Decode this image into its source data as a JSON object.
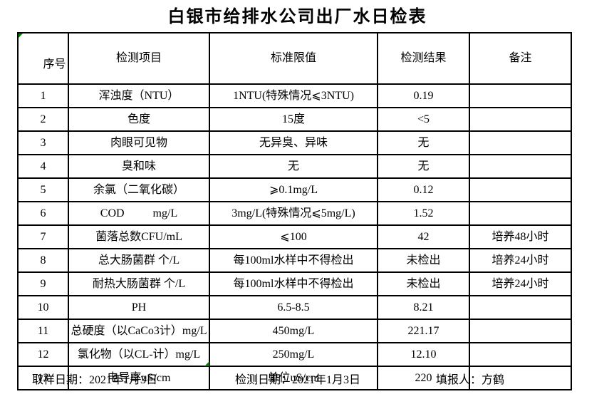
{
  "title": "白银市给排水公司出厂水日检表",
  "colors": {
    "background": "#ffffff",
    "text": "#000000",
    "border": "#000000",
    "flag_green": "#008000"
  },
  "markers": {
    "header_corner": "green-triangle",
    "bottom_edge": "green-triangle"
  },
  "table": {
    "headers": [
      "序号",
      "检测项目",
      "标准限值",
      "检测结果",
      "备注"
    ],
    "rows": [
      {
        "no": "1",
        "item": "浑浊度（NTU）",
        "limit": "1NTU(特殊情况⩽3NTU)",
        "result": "0.19",
        "note": ""
      },
      {
        "no": "2",
        "item": "色度",
        "limit": "15度",
        "result": "<5",
        "note": ""
      },
      {
        "no": "3",
        "item": "肉眼可见物",
        "limit": "无异臭、异味",
        "result": "无",
        "note": ""
      },
      {
        "no": "4",
        "item": "臭和味",
        "limit": "无",
        "result": "无",
        "note": ""
      },
      {
        "no": "5",
        "item": "余氯（二氧化碳）",
        "limit": "⩾0.1mg/L",
        "result": "0.12",
        "note": ""
      },
      {
        "no": "6",
        "item": "COD          mg/L",
        "limit": "3mg/L(特殊情况⩽5mg/L)",
        "result": "1.52",
        "note": ""
      },
      {
        "no": "7",
        "item": "菌落总数CFU/mL",
        "limit": "⩽100",
        "result": "42",
        "note": "培养48小时"
      },
      {
        "no": "8",
        "item": "总大肠菌群 个/L",
        "limit": "每100ml水样中不得检出",
        "result": "未检出",
        "note": "培养24小时"
      },
      {
        "no": "9",
        "item": "耐热大肠菌群 个/L",
        "limit": "每100ml水样中不得检出",
        "result": "未检出",
        "note": "培养24小时"
      },
      {
        "no": "10",
        "item": "PH",
        "limit": "6.5-8.5",
        "result": "8.21",
        "note": ""
      },
      {
        "no": "11",
        "item": "总硬度（以CaCo3计）mg/L",
        "limit": "450mg/L",
        "result": "221.17",
        "note": ""
      },
      {
        "no": "12",
        "item": "氯化物（以CL-计）mg/L",
        "limit": "250mg/L",
        "result": "12.10",
        "note": ""
      },
      {
        "no": "13",
        "item": "电导率uS/cm",
        "limit": "单位uS/cm",
        "result": "220",
        "note": ""
      }
    ]
  },
  "footer": {
    "sampling": {
      "label": "取样日期：",
      "value": "2021年1月3日"
    },
    "testing": {
      "label": "检测日期：",
      "value": "2021年1月3日"
    },
    "reporter": {
      "label": "填报人：",
      "value": "方鹤"
    }
  }
}
